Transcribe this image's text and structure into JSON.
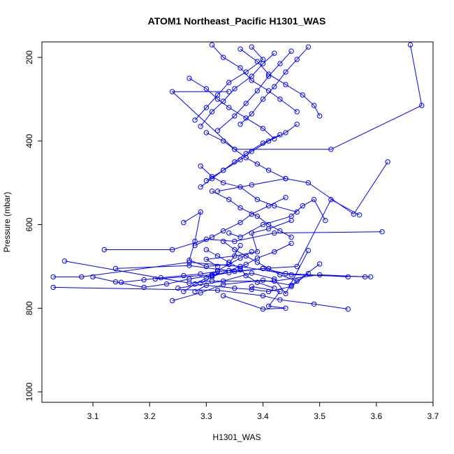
{
  "chart_data": {
    "type": "line",
    "title": "ATOM1 Northeast_Pacific H1301_WAS",
    "xlabel": "H1301_WAS",
    "ylabel": "Pressure (mbar)",
    "xlim": [
      3.01,
      3.7
    ],
    "ylim": [
      1025,
      163
    ],
    "y_reversed": true,
    "x_ticks": [
      "3.1",
      "3.2",
      "3.3",
      "3.4",
      "3.5",
      "3.6",
      "3.7"
    ],
    "x_tick_values": [
      3.1,
      3.2,
      3.3,
      3.4,
      3.5,
      3.6,
      3.7
    ],
    "y_ticks": [
      "200",
      "400",
      "600",
      "800",
      "1000"
    ],
    "y_tick_values": [
      200,
      400,
      600,
      800,
      1000
    ],
    "series_color": "#0000ff",
    "marker": "open-circle",
    "grid": false,
    "legend": "none",
    "series": [
      {
        "x": [
          3.66,
          3.68,
          3.52,
          3.35,
          3.24,
          3.34
        ],
        "y": [
          170,
          315,
          420,
          420,
          282,
          282
        ]
      },
      {
        "x": [
          3.62,
          3.56,
          3.48,
          3.44,
          3.38,
          3.32
        ],
        "y": [
          450,
          575,
          500,
          490,
          505,
          520
        ]
      },
      {
        "x": [
          3.61,
          3.42,
          3.35,
          3.3,
          3.24,
          3.12
        ],
        "y": [
          617,
          620,
          640,
          635,
          660,
          660
        ]
      },
      {
        "x": [
          3.59,
          3.45,
          3.36,
          3.27,
          3.08,
          3.03
        ],
        "y": [
          725,
          720,
          700,
          690,
          725,
          725
        ]
      },
      {
        "x": [
          3.55,
          3.49,
          3.43,
          3.4,
          3.32,
          3.03
        ],
        "y": [
          802,
          790,
          780,
          770,
          757,
          750
        ]
      },
      {
        "x": [
          3.58,
          3.5,
          3.42,
          3.31,
          3.27,
          3.05
        ],
        "y": [
          725,
          720,
          735,
          735,
          740,
          687
        ]
      },
      {
        "x": [
          3.14,
          3.27,
          3.35,
          3.4,
          3.44,
          3.55
        ],
        "y": [
          705,
          698,
          712,
          705,
          717,
          725
        ]
      },
      {
        "x": [
          3.21,
          3.31,
          3.4,
          3.46,
          3.52,
          3.57
        ],
        "y": [
          730,
          720,
          705,
          700,
          540,
          577
        ]
      },
      {
        "x": [
          3.24,
          3.29,
          3.33,
          3.4,
          3.45,
          3.5
        ],
        "y": [
          782,
          763,
          743,
          733,
          745,
          694
        ]
      },
      {
        "x": [
          3.25,
          3.33,
          3.38,
          3.42,
          3.44,
          3.48
        ],
        "y": [
          752,
          735,
          716,
          730,
          765,
          662
        ]
      },
      {
        "x": [
          3.38,
          3.43,
          3.41,
          3.44,
          3.4,
          3.33
        ],
        "y": [
          748,
          760,
          795,
          800,
          802,
          770
        ]
      },
      {
        "x": [
          3.28,
          3.3,
          3.35,
          3.38,
          3.41,
          3.45,
          3.48
        ],
        "y": [
          760,
          745,
          752,
          755,
          760,
          748,
          717
        ]
      },
      {
        "x": [
          3.26,
          3.29,
          3.28,
          3.27,
          3.3,
          3.34,
          3.36
        ],
        "y": [
          595,
          570,
          640,
          685,
          700,
          695,
          650
        ]
      },
      {
        "x": [
          3.32,
          3.3,
          3.35,
          3.39,
          3.38,
          3.41,
          3.45
        ],
        "y": [
          700,
          683,
          675,
          665,
          620,
          610,
          590
        ]
      },
      {
        "x": [
          3.34,
          3.36,
          3.4,
          3.45,
          3.47,
          3.49,
          3.51
        ],
        "y": [
          620,
          630,
          600,
          580,
          555,
          540,
          590
        ]
      },
      {
        "x": [
          3.29,
          3.31,
          3.33,
          3.36,
          3.39,
          3.42,
          3.46
        ],
        "y": [
          460,
          485,
          500,
          510,
          540,
          555,
          570
        ]
      },
      {
        "x": [
          3.27,
          3.3,
          3.32,
          3.34,
          3.37,
          3.4,
          3.42
        ],
        "y": [
          250,
          275,
          300,
          320,
          345,
          370,
          395
        ]
      },
      {
        "x": [
          3.31,
          3.33,
          3.36,
          3.38,
          3.41,
          3.43,
          3.46
        ],
        "y": [
          170,
          200,
          225,
          255,
          280,
          300,
          330
        ]
      },
      {
        "x": [
          3.36,
          3.39,
          3.41,
          3.44,
          3.47,
          3.49,
          3.5
        ],
        "y": [
          180,
          210,
          240,
          265,
          290,
          315,
          340
        ]
      },
      {
        "x": [
          3.38,
          3.4,
          3.37,
          3.34,
          3.32,
          3.3,
          3.28
        ],
        "y": [
          175,
          205,
          235,
          260,
          290,
          320,
          350
        ]
      },
      {
        "x": [
          3.42,
          3.4,
          3.38,
          3.35,
          3.33,
          3.31,
          3.29
        ],
        "y": [
          190,
          215,
          245,
          275,
          305,
          330,
          365
        ]
      },
      {
        "x": [
          3.45,
          3.43,
          3.41,
          3.39,
          3.37,
          3.35,
          3.32
        ],
        "y": [
          185,
          215,
          245,
          280,
          310,
          340,
          375
        ]
      },
      {
        "x": [
          3.48,
          3.46,
          3.44,
          3.42,
          3.4,
          3.38,
          3.36
        ],
        "y": [
          175,
          205,
          235,
          270,
          300,
          335,
          360
        ]
      },
      {
        "x": [
          3.3,
          3.33,
          3.35,
          3.37,
          3.39,
          3.41,
          3.44
        ],
        "y": [
          380,
          400,
          420,
          440,
          455,
          470,
          490
        ]
      },
      {
        "x": [
          3.43,
          3.4,
          3.37,
          3.35,
          3.33,
          3.31,
          3.29
        ],
        "y": [
          385,
          405,
          430,
          450,
          470,
          490,
          510
        ]
      },
      {
        "x": [
          3.46,
          3.44,
          3.41,
          3.38,
          3.36,
          3.33,
          3.3
        ],
        "y": [
          360,
          380,
          400,
          425,
          445,
          470,
          495
        ]
      },
      {
        "x": [
          3.31,
          3.34,
          3.36,
          3.39,
          3.41,
          3.43,
          3.45
        ],
        "y": [
          520,
          540,
          560,
          580,
          600,
          615,
          630
        ]
      },
      {
        "x": [
          3.44,
          3.41,
          3.38,
          3.36,
          3.33,
          3.31,
          3.28
        ],
        "y": [
          535,
          555,
          575,
          595,
          615,
          630,
          650
        ]
      },
      {
        "x": [
          3.33,
          3.35,
          3.37,
          3.39,
          3.41,
          3.43,
          3.46
        ],
        "y": [
          640,
          660,
          675,
          690,
          705,
          720,
          735
        ]
      },
      {
        "x": [
          3.45,
          3.42,
          3.39,
          3.37,
          3.34,
          3.31,
          3.29
        ],
        "y": [
          645,
          665,
          680,
          695,
          710,
          725,
          740
        ]
      },
      {
        "x": [
          3.15,
          3.19,
          3.22,
          3.26,
          3.29,
          3.32,
          3.36
        ],
        "y": [
          738,
          732,
          727,
          722,
          718,
          712,
          708
        ]
      },
      {
        "x": [
          3.1,
          3.14,
          3.19,
          3.23,
          3.27,
          3.31,
          3.34
        ],
        "y": [
          725,
          737,
          750,
          742,
          730,
          722,
          715
        ]
      },
      {
        "x": [
          3.3,
          3.32,
          3.34,
          3.36,
          3.37,
          3.39,
          3.42
        ],
        "y": [
          660,
          675,
          690,
          705,
          722,
          738,
          752
        ]
      },
      {
        "x": [
          3.38,
          3.36,
          3.34,
          3.32,
          3.3,
          3.28,
          3.26
        ],
        "y": [
          665,
          680,
          695,
          710,
          728,
          742,
          760
        ]
      }
    ]
  }
}
